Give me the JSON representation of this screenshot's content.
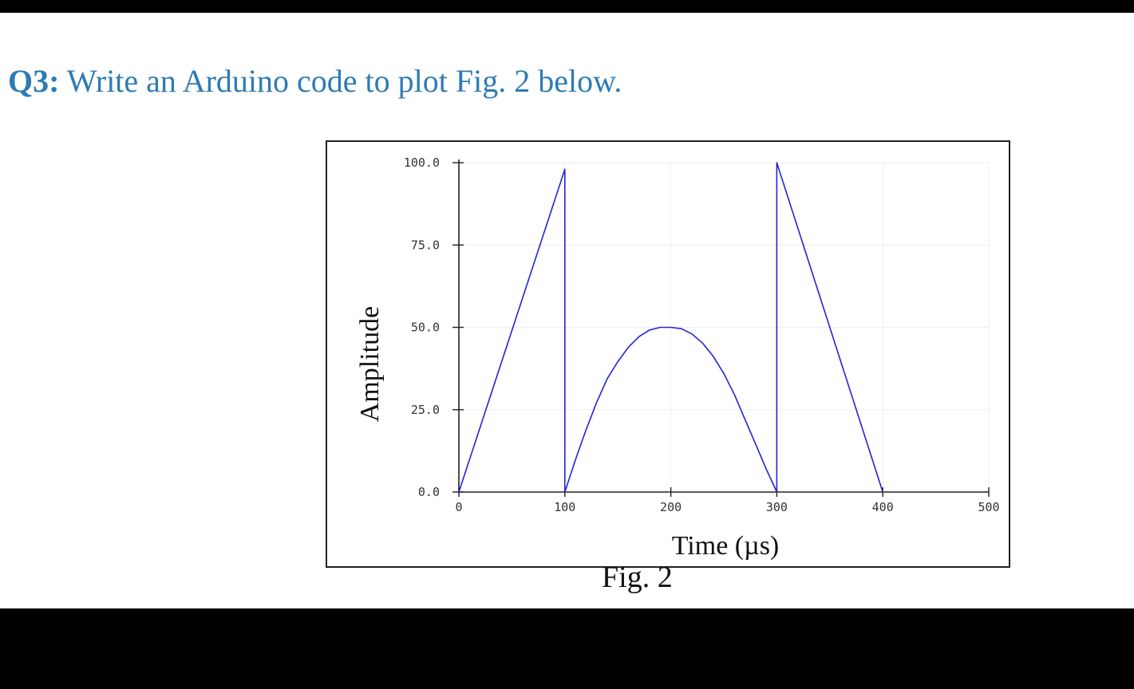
{
  "question": {
    "number": "Q3:",
    "text": " Write an Arduino code to plot Fig. 2 below."
  },
  "caption": "Fig. 2",
  "colors": {
    "question_text": "#2e7bb4",
    "series_line": "#2323d8",
    "background_band": "#000000"
  },
  "chart_data": {
    "type": "line",
    "xlabel": "Time (µs)",
    "ylabel": "Amplitude",
    "xlim": [
      0,
      500
    ],
    "ylim": [
      0,
      100
    ],
    "x_ticks": [
      0,
      100,
      200,
      300,
      400,
      500
    ],
    "x_tick_labels": [
      "0",
      "100",
      "200",
      "300",
      "400",
      "500"
    ],
    "y_ticks": [
      0,
      25,
      50,
      75,
      100
    ],
    "y_tick_labels": [
      "0.0",
      "25.0",
      "50.0",
      "75.0",
      "100.0"
    ],
    "grid": true,
    "series": [
      {
        "points": [
          [
            0,
            0
          ],
          [
            100,
            98
          ],
          [
            100,
            0
          ],
          [
            110,
            9.8
          ],
          [
            120,
            18.9
          ],
          [
            130,
            27.2
          ],
          [
            140,
            34.4
          ],
          [
            150,
            39.6
          ],
          [
            160,
            44.0
          ],
          [
            170,
            47.2
          ],
          [
            180,
            49.2
          ],
          [
            190,
            50.0
          ],
          [
            200,
            50.0
          ],
          [
            210,
            49.6
          ],
          [
            220,
            48.0
          ],
          [
            230,
            45.2
          ],
          [
            240,
            41.2
          ],
          [
            250,
            36.0
          ],
          [
            260,
            29.6
          ],
          [
            270,
            22.0
          ],
          [
            280,
            14.6
          ],
          [
            290,
            7.0
          ],
          [
            300,
            0
          ],
          [
            300,
            100
          ],
          [
            400,
            0
          ]
        ]
      }
    ]
  }
}
